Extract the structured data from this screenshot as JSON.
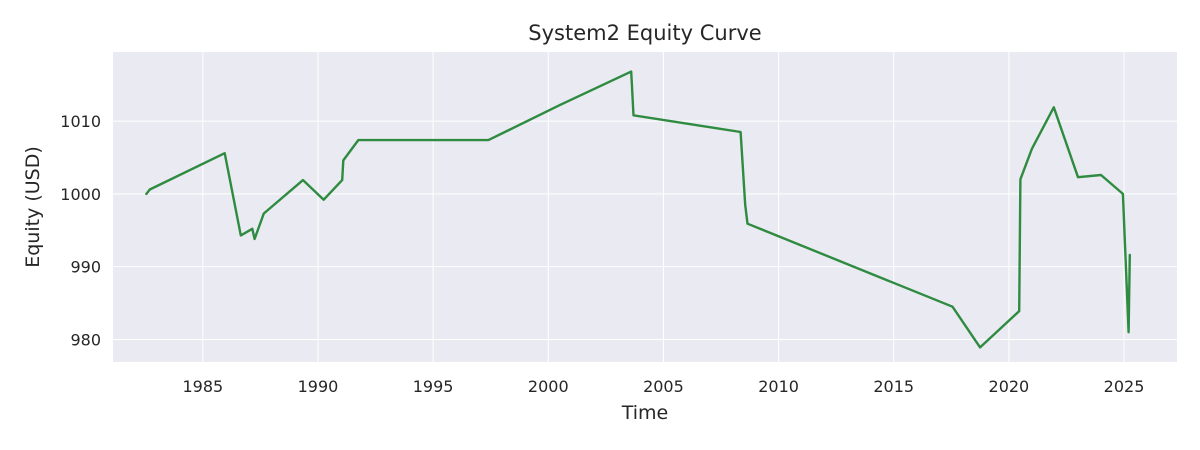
{
  "chart_data": {
    "type": "line",
    "title": "System2 Equity Curve",
    "xlabel": "Time",
    "ylabel": "Equity (USD)",
    "xlim": [
      1981.1,
      2027.3
    ],
    "ylim": [
      976.9,
      1019.5
    ],
    "x_ticks": [
      {
        "value": 1985,
        "label": "1985"
      },
      {
        "value": 1990,
        "label": "1990"
      },
      {
        "value": 1995,
        "label": "1995"
      },
      {
        "value": 2000,
        "label": "2000"
      },
      {
        "value": 2005,
        "label": "2005"
      },
      {
        "value": 2010,
        "label": "2010"
      },
      {
        "value": 2015,
        "label": "2015"
      },
      {
        "value": 2020,
        "label": "2020"
      },
      {
        "value": 2025,
        "label": "2025"
      }
    ],
    "y_ticks": [
      {
        "value": 980,
        "label": "980"
      },
      {
        "value": 990,
        "label": "990"
      },
      {
        "value": 1000,
        "label": "1000"
      },
      {
        "value": 1010,
        "label": "1010"
      }
    ],
    "grid": true,
    "line_color": "#2e8b40",
    "background_color": "#eaeaf2",
    "grid_color": "#ffffff",
    "series": [
      {
        "x": [
          1982.55,
          1982.7,
          1985.95,
          1986.65,
          1987.15,
          1987.25,
          1987.65,
          1989.35,
          1990.25,
          1991.05,
          1991.1,
          1991.75,
          1997.4,
          2000.5,
          2003.6,
          2003.7,
          2008.35,
          2008.55,
          2008.65,
          2017.55,
          2018.75,
          2020.45,
          2020.5,
          2021.0,
          2021.95,
          2023.0,
          2024.0,
          2024.95,
          2025.2,
          2025.25
        ],
        "y": [
          1000.0,
          1000.6,
          1005.6,
          994.3,
          995.2,
          993.8,
          997.3,
          1001.9,
          999.2,
          1001.9,
          1004.6,
          1007.4,
          1007.4,
          1012.2,
          1016.8,
          1010.8,
          1008.5,
          998.5,
          995.9,
          984.5,
          978.9,
          983.9,
          1002.0,
          1006.2,
          1011.9,
          1002.3,
          1002.6,
          1000.0,
          981.0,
          991.6
        ]
      }
    ]
  }
}
